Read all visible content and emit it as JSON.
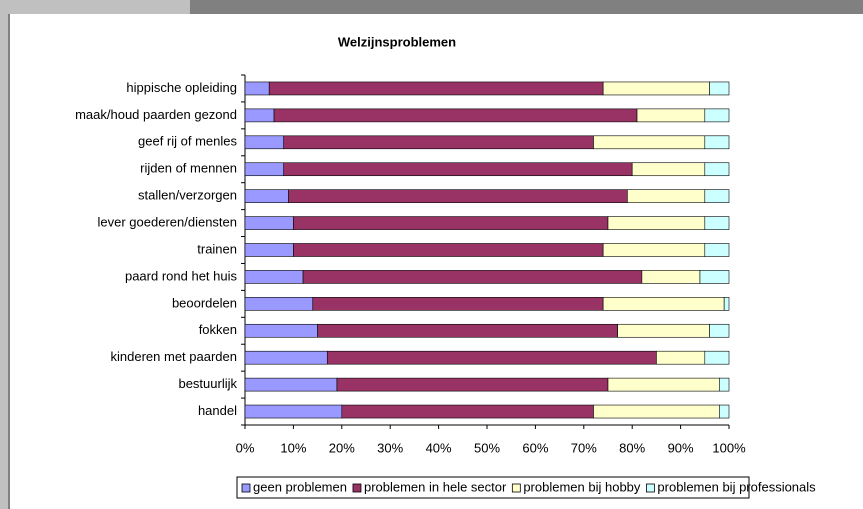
{
  "chart_data": {
    "type": "bar",
    "orientation": "horizontal",
    "stacked": true,
    "title": "Welzijnsproblemen",
    "categories": [
      "hippische opleiding",
      "maak/houd paarden gezond",
      "geef rij of menles",
      "rijden of mennen",
      "stallen/verzorgen",
      "lever goederen/diensten",
      "trainen",
      "paard rond het huis",
      "beoordelen",
      "fokken",
      "kinderen met paarden",
      "bestuurlijk",
      "handel"
    ],
    "series": [
      {
        "name": "geen problemen",
        "color": "#9999ff",
        "values": [
          5,
          6,
          8,
          8,
          9,
          10,
          10,
          12,
          14,
          15,
          17,
          19,
          20
        ]
      },
      {
        "name": "problemen in hele sector",
        "color": "#993366",
        "values": [
          69,
          75,
          64,
          72,
          70,
          65,
          64,
          70,
          60,
          62,
          68,
          56,
          52
        ]
      },
      {
        "name": "problemen bij hobby",
        "color": "#ffffcc",
        "values": [
          22,
          14,
          23,
          15,
          16,
          20,
          21,
          12,
          25,
          19,
          10,
          23,
          26
        ]
      },
      {
        "name": "problemen bij professionals",
        "color": "#ccffff",
        "values": [
          4,
          5,
          5,
          5,
          5,
          5,
          5,
          6,
          1,
          4,
          5,
          2,
          2
        ]
      }
    ],
    "xlim": [
      0,
      100
    ],
    "xticks": [
      {
        "value": 0,
        "label": "0%"
      },
      {
        "value": 10,
        "label": "10%"
      },
      {
        "value": 20,
        "label": "20%"
      },
      {
        "value": 30,
        "label": "30%"
      },
      {
        "value": 40,
        "label": "40%"
      },
      {
        "value": 50,
        "label": "50%"
      },
      {
        "value": 60,
        "label": "60%"
      },
      {
        "value": 70,
        "label": "70%"
      },
      {
        "value": 80,
        "label": "80%"
      },
      {
        "value": 90,
        "label": "90%"
      },
      {
        "value": 100,
        "label": "100%"
      }
    ],
    "legend": "bottom"
  }
}
